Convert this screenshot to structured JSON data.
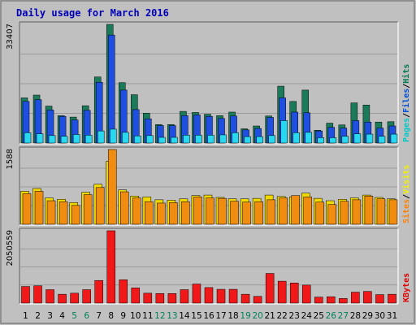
{
  "chart_data": {
    "type": "bar",
    "title": "Daily usage for March 2016",
    "categories": [
      "1",
      "2",
      "3",
      "4",
      "5",
      "6",
      "7",
      "8",
      "9",
      "10",
      "11",
      "12",
      "13",
      "14",
      "15",
      "16",
      "17",
      "18",
      "19",
      "20",
      "21",
      "22",
      "23",
      "24",
      "25",
      "26",
      "27",
      "28",
      "29",
      "30",
      "31"
    ],
    "weekend_days": [
      "5",
      "6",
      "12",
      "13",
      "19",
      "20",
      "26",
      "27"
    ],
    "panels": [
      {
        "id": "hits-files-pages",
        "max_label": "33407",
        "ymax": 33407,
        "legend": [
          {
            "name": "Pages",
            "color": "#00c8c8"
          },
          {
            "name": "Files",
            "color": "#0050d8"
          },
          {
            "name": "Hits",
            "color": "#007850"
          }
        ],
        "series": [
          {
            "name": "Hits",
            "color": "#1a7a5a",
            "values": [
              12700,
              13500,
              10400,
              7700,
              7300,
              10500,
              18600,
              33407,
              17000,
              13600,
              8400,
              5200,
              5200,
              8900,
              8600,
              8100,
              7700,
              8700,
              4000,
              4800,
              7600,
              16000,
              11700,
              14900,
              3600,
              5600,
              5100,
              11300,
              10700,
              5900,
              6000
            ]
          },
          {
            "name": "Files",
            "color": "#1e4fe0",
            "values": [
              11700,
              12200,
              9300,
              7500,
              6500,
              9200,
              17100,
              30400,
              14900,
              9400,
              6800,
              4900,
              4900,
              7700,
              7900,
              7500,
              6900,
              7600,
              3700,
              4100,
              7200,
              12700,
              8700,
              8500,
              3400,
              4400,
              4200,
              6300,
              5900,
              4200,
              4800
            ]
          },
          {
            "name": "Pages",
            "color": "#28d8f0",
            "values": [
              2900,
              2600,
              2100,
              1900,
              2400,
              2200,
              3400,
              3900,
              3000,
              2000,
              2100,
              1600,
              1600,
              2200,
              2200,
              2200,
              2300,
              2900,
              1800,
              1800,
              2100,
              6300,
              2900,
              3000,
              1500,
              1500,
              1900,
              2600,
              2500,
              1900,
              2500
            ]
          }
        ]
      },
      {
        "id": "visits-sites",
        "max_label": "1588",
        "ymax": 1588,
        "legend": [
          {
            "name": "Sites",
            "color": "#ff8000"
          },
          {
            "name": "Visits",
            "color": "#f0f000"
          }
        ],
        "series": [
          {
            "name": "Visits",
            "color": "#f0d800",
            "values": [
              700,
              760,
              560,
              530,
              460,
              680,
              850,
              1340,
              730,
              600,
              580,
              520,
              510,
              540,
              610,
              620,
              570,
              540,
              540,
              550,
              620,
              590,
              580,
              660,
              550,
              500,
              530,
              560,
              620,
              570,
              540
            ]
          },
          {
            "name": "Sites",
            "color": "#f08c10",
            "values": [
              650,
              700,
              500,
              480,
              400,
              630,
              780,
              1588,
              690,
              560,
              480,
              450,
              460,
              480,
              580,
              560,
              550,
              490,
              470,
              480,
              520,
              560,
              610,
              580,
              470,
              420,
              490,
              520,
              600,
              540,
              520
            ]
          }
        ]
      },
      {
        "id": "kbytes",
        "max_label": "2050559",
        "ymax": 2050559,
        "legend": [
          {
            "name": "KBytes",
            "color": "#e00000"
          }
        ],
        "series": [
          {
            "name": "KBytes",
            "color": "#f01818",
            "values": [
              470000,
              490000,
              380000,
              250000,
              280000,
              380000,
              640000,
              2050559,
              660000,
              430000,
              280000,
              270000,
              270000,
              380000,
              540000,
              440000,
              390000,
              390000,
              250000,
              190000,
              840000,
              620000,
              570000,
              510000,
              170000,
              180000,
              130000,
              310000,
              330000,
              240000,
              250000
            ]
          }
        ]
      }
    ]
  }
}
